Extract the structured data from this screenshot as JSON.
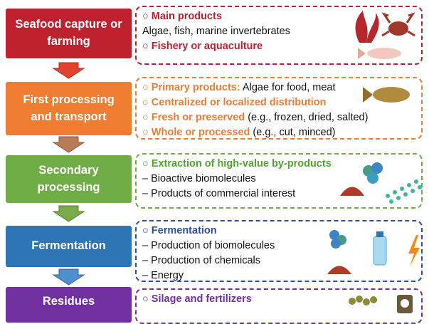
{
  "stages": [
    {
      "label": "Seafood capture or farming",
      "items": [
        {
          "heading": "Main products"
        },
        {
          "detail": "Algae, fish, marine invertebrates"
        },
        {
          "heading": "Fishery or aquaculture"
        }
      ]
    },
    {
      "label": "First processing and transport",
      "items": [
        {
          "heading": "Primary products:",
          "detail": " Algae for food, meat"
        },
        {
          "heading": "Centralized or localized distribution"
        },
        {
          "heading": "Fresh or preserved",
          "detail": " (e.g., frozen, dried, salted)"
        },
        {
          "heading": "Whole or processed",
          "detail": " (e.g., cut, minced)"
        }
      ]
    },
    {
      "label": "Secondary processing",
      "items": [
        {
          "heading": "Extraction of high-value by-products"
        },
        {
          "detail": "Bioactive biomolecules"
        },
        {
          "detail": "Products of commercial interest"
        }
      ]
    },
    {
      "label": "Fermentation",
      "items": [
        {
          "heading": "Fermentation"
        },
        {
          "detail": "Production of biomolecules"
        },
        {
          "detail": "Production of chemicals"
        },
        {
          "detail": "Energy"
        }
      ]
    },
    {
      "label": "Residues",
      "items": [
        {
          "heading": "Silage and fertilizers"
        }
      ]
    }
  ]
}
